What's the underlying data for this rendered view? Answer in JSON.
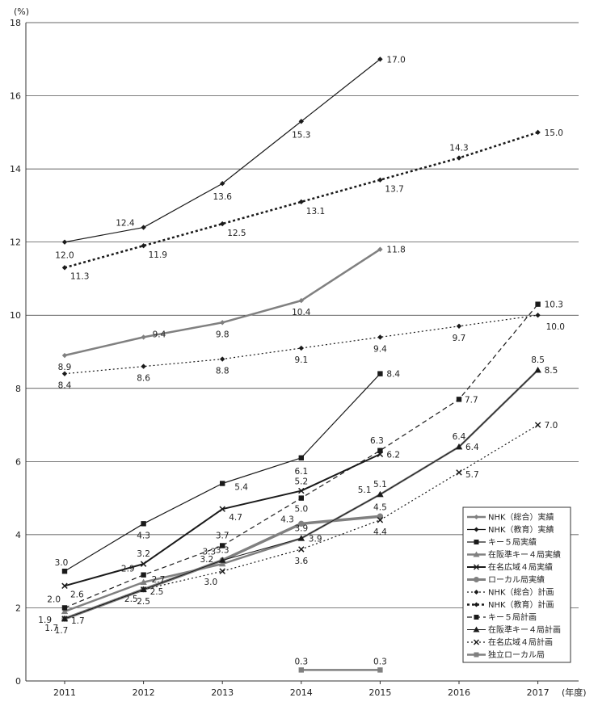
{
  "chart_data": {
    "type": "line",
    "title": "",
    "xlabel": "",
    "ylabel": "",
    "y_unit": "(%)",
    "x_unit": "(年度)",
    "ylim": [
      0,
      18
    ],
    "y_ticks": [
      0,
      2,
      4,
      6,
      8,
      10,
      12,
      14,
      16,
      18
    ],
    "x": [
      2011,
      2012,
      2013,
      2014,
      2015,
      2016,
      2017
    ],
    "grid": "horizontal",
    "legend_position": "bottom-right",
    "series": [
      {
        "name": "NHK（総合）実績",
        "style": "solid",
        "marker": "diamond",
        "color": "#808080",
        "width": 2.5,
        "values": [
          8.9,
          9.4,
          9.8,
          10.4,
          11.8,
          null,
          null
        ],
        "labels": [
          "8.9",
          "9.4",
          "9.8",
          "10.4",
          "11.8",
          null,
          null
        ]
      },
      {
        "name": "NHK（教育）実績",
        "style": "solid",
        "marker": "diamond",
        "color": "#1a1a1a",
        "width": 1.2,
        "values": [
          12.0,
          12.4,
          13.6,
          15.3,
          17.0,
          null,
          null
        ],
        "labels": [
          "12.0",
          "12.4",
          "13.6",
          "15.3",
          "17.0",
          null,
          null
        ]
      },
      {
        "name": "キー５局実績",
        "style": "solid",
        "marker": "square",
        "color": "#1a1a1a",
        "width": 1.2,
        "values": [
          3.0,
          4.3,
          5.4,
          6.1,
          8.4,
          null,
          null
        ],
        "labels": [
          "3.0",
          "4.3",
          "5.4",
          "6.1",
          "8.4",
          null,
          null
        ]
      },
      {
        "name": "在阪準キー４局実績",
        "style": "solid",
        "marker": "triangle",
        "color": "#808080",
        "width": 2.5,
        "values": [
          1.9,
          2.7,
          3.2,
          3.9,
          5.1,
          6.4,
          8.5
        ],
        "labels": [
          "1.9",
          "2.7",
          "3.2",
          "3.9",
          "5.1",
          "6.4",
          "8.5"
        ]
      },
      {
        "name": "在名広域４局実績",
        "style": "solid",
        "marker": "x",
        "color": "#1a1a1a",
        "width": 2.0,
        "values": [
          2.6,
          3.2,
          4.7,
          5.2,
          6.2,
          null,
          null
        ],
        "labels": [
          "2.6",
          "3.2",
          "4.7",
          "5.2",
          "6.2",
          null,
          null
        ]
      },
      {
        "name": "ローカル局実績",
        "style": "solid",
        "marker": "circle",
        "color": "#808080",
        "width": 3.5,
        "values": [
          1.7,
          2.5,
          3.3,
          4.3,
          4.5,
          null,
          null
        ],
        "labels": [
          "1.7",
          "2.5",
          "3.3",
          "4.3",
          "4.5",
          null,
          null
        ]
      },
      {
        "name": "NHK（総合）計画",
        "style": "dotted",
        "marker": "diamond",
        "color": "#1a1a1a",
        "width": 1.2,
        "values": [
          8.4,
          8.6,
          8.8,
          9.1,
          9.4,
          9.7,
          10.0
        ],
        "labels": [
          "8.4",
          "8.6",
          "8.8",
          "9.1",
          "9.4",
          "9.7",
          "10.0"
        ]
      },
      {
        "name": "NHK（教育）計画",
        "style": "dotted-bold",
        "marker": "diamond",
        "color": "#1a1a1a",
        "width": 2.5,
        "values": [
          11.3,
          11.9,
          12.5,
          13.1,
          13.7,
          14.3,
          15.0
        ],
        "labels": [
          "11.3",
          "11.9",
          "12.5",
          "13.1",
          "13.7",
          "14.3",
          "15.0"
        ]
      },
      {
        "name": "キー５局計画",
        "style": "dashed",
        "marker": "square",
        "color": "#1a1a1a",
        "width": 1.2,
        "values": [
          2.0,
          2.9,
          3.7,
          5.0,
          6.3,
          7.7,
          10.3
        ],
        "labels": [
          "2.0",
          "2.9",
          "3.7",
          "5.0",
          "6.3",
          "7.7",
          "10.3"
        ]
      },
      {
        "name": "在阪準キー４局計画",
        "style": "solid",
        "marker": "triangle",
        "color": "#1a1a1a",
        "width": 1.0,
        "values": [
          1.7,
          2.5,
          3.3,
          3.9,
          5.1,
          6.4,
          8.5
        ],
        "labels": [
          "1.7",
          "2.5",
          "3.3",
          "3.9",
          "5.1",
          "6.4",
          "8.5"
        ]
      },
      {
        "name": "在名広域４局計画",
        "style": "dotted",
        "marker": "x",
        "color": "#1a1a1a",
        "width": 1.2,
        "values": [
          1.7,
          2.5,
          3.0,
          3.6,
          4.4,
          5.7,
          7.0
        ],
        "labels": [
          "1.7",
          "2.5",
          "3.0",
          "3.6",
          "4.4",
          "5.7",
          "7.0"
        ]
      },
      {
        "name": "独立ローカル局",
        "style": "solid",
        "marker": "square",
        "color": "#808080",
        "width": 2.5,
        "values": [
          null,
          null,
          null,
          0.3,
          0.3,
          null,
          null
        ],
        "labels": [
          null,
          null,
          null,
          "0.3",
          "0.3",
          null,
          null
        ]
      }
    ]
  }
}
